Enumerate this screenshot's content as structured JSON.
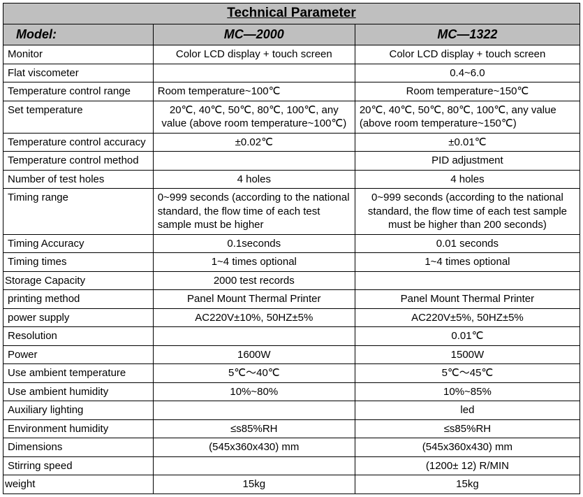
{
  "title": "Technical Parameter",
  "modelLabel": "Model:",
  "modelA": "MC—2000",
  "modelB": "MC—1322",
  "rows": [
    {
      "label": "Monitor",
      "a": "Color LCD display + touch screen",
      "b": "Color LCD display + touch screen"
    },
    {
      "label": "Flat viscometer",
      "a": "",
      "b": "0.4~6.0"
    },
    {
      "label": "Temperature control range",
      "a": "Room temperature~100℃",
      "aAlign": "left",
      "b": "Room temperature~150℃"
    },
    {
      "label": "Set temperature",
      "a": "20℃, 40℃, 50℃, 80℃, 100℃, any value (above room temperature~100℃)",
      "b": "20℃, 40℃, 50℃, 80℃, 100℃, any value (above room temperature~150℃)",
      "bAlign": "left"
    },
    {
      "label": "Temperature control accuracy",
      "a": "±0.02℃",
      "b": "±0.01℃"
    },
    {
      "label": "Temperature control method",
      "a": "",
      "b": "PID adjustment"
    },
    {
      "label": "Number of test holes",
      "a": "4 holes",
      "b": "4 holes"
    },
    {
      "label": "Timing range",
      "a": "0~999 seconds (according to the national standard, the flow time of each test sample must be higher",
      "aAlign": "left",
      "b": "0~999 seconds (according to the national standard, the flow time of each test sample must be higher than 200 seconds)"
    },
    {
      "label": "Timing Accuracy",
      "a": "0.1seconds",
      "b": "0.01 seconds"
    },
    {
      "label": "Timing times",
      "a": "1~4 times optional",
      "b": "1~4 times optional"
    },
    {
      "label": "Storage Capacity",
      "labelNoPad": true,
      "a": "2000 test records",
      "b": ""
    },
    {
      "label": "printing method",
      "a": "Panel Mount Thermal Printer",
      "b": "Panel Mount Thermal Printer"
    },
    {
      "label": "power supply",
      "a": "AC220V±10%, 50HZ±5%",
      "b": "AC220V±5%, 50HZ±5%"
    },
    {
      "label": "Resolution",
      "a": "",
      "b": "0.01℃"
    },
    {
      "label": "Power",
      "a": "1600W",
      "b": "1500W"
    },
    {
      "label": "Use ambient temperature",
      "a": "5℃～40℃",
      "b": "5℃～45℃"
    },
    {
      "label": "Use ambient humidity",
      "a": "10%~80%",
      "b": "10%~85%"
    },
    {
      "label": "Auxiliary lighting",
      "a": "",
      "b": "led"
    },
    {
      "label": "Environment humidity",
      "a": "≤s85%RH",
      "b": "≤s85%RH"
    },
    {
      "label": "Dimensions",
      "a": "(545x360x430) mm",
      "b": "(545x360x430) mm"
    },
    {
      "label": "Stirring speed",
      "a": "",
      "b": "(1200± 12) R/MIN"
    },
    {
      "label": "weight",
      "labelNoPad": true,
      "a": "15kg",
      "b": "15kg"
    }
  ]
}
